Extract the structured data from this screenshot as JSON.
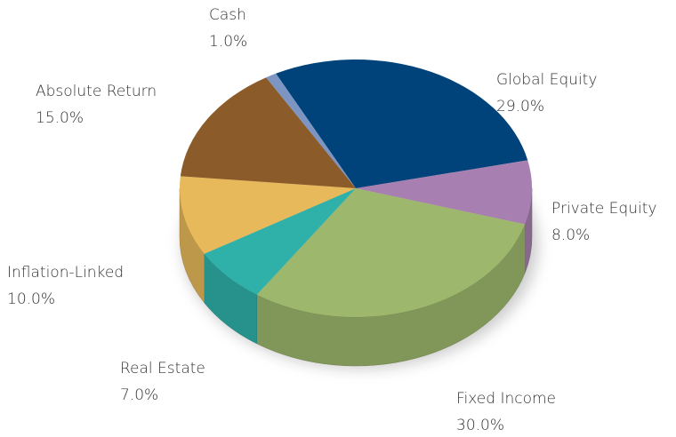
{
  "chart_data": {
    "type": "pie",
    "categories": [
      "Global Equity",
      "Private Equity",
      "Fixed Income",
      "Real Estate",
      "Inflation-Linked",
      "Absolute Return",
      "Cash"
    ],
    "values": [
      29,
      8,
      30,
      7,
      10,
      15,
      1
    ],
    "value_labels": [
      "29.0%",
      "8.0%",
      "30.0%",
      "7.0%",
      "10.0%",
      "15.0%",
      "1.0%"
    ],
    "colors": [
      "#00427a",
      "#a77fb0",
      "#9db76d",
      "#2fb1aa",
      "#e8b95a",
      "#8c5b2a",
      "#7d95c2"
    ]
  }
}
